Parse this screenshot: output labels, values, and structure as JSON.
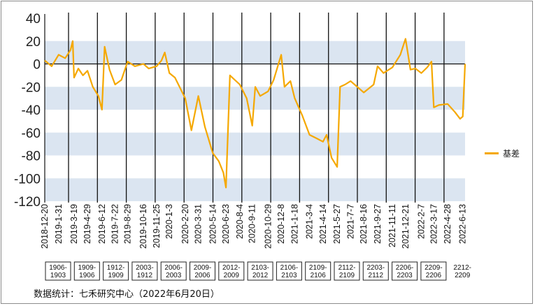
{
  "source_note": "数据统计：七禾研究中心（2022年6月20日）",
  "colors": {
    "series": "#f5a800",
    "band": "#dbe5f1",
    "switch_line": "#111111"
  },
  "chart_data": {
    "type": "line",
    "title": "",
    "xlabel": "",
    "ylabel": "",
    "ylim": [
      -120,
      40
    ],
    "yticks": [
      40,
      20,
      0,
      -20,
      -40,
      -60,
      -80,
      -100,
      -120
    ],
    "grid": "alternating horizontal bands",
    "legend_position": "right",
    "x_tick_labels": [
      "2018-12-20",
      "2019-1-31",
      "2019-3-19",
      "2019-4-29",
      "2019-6-12",
      "2019-7-22",
      "2019-8-29",
      "2019-10-16",
      "2019-11-25",
      "2020-1-3",
      "2020-2-20",
      "2020-3-31",
      "2020-5-14",
      "2020-6-23",
      "2020-8-4",
      "2020-9-11",
      "2020-10-29",
      "2020-12-8",
      "2021-1-18",
      "2021-3-4",
      "2021-4-14",
      "2021-5-27",
      "2021-7-7",
      "2021-8-16",
      "2021-9-27",
      "2021-11-11",
      "2021-12-21",
      "2022-2-7",
      "2022-3-17",
      "2022-4-28",
      "2022-6-13"
    ],
    "contract_switches": [
      "1906-1903",
      "1909-1906",
      "1912-1909",
      "2003-1912",
      "2006-2003",
      "2009-2006",
      "2012-2009",
      "2103-2012",
      "2106-2103",
      "2109-2106",
      "2112-2109",
      "2203-2112",
      "2206-2203",
      "2209-2206",
      "2212-2209"
    ],
    "series": [
      {
        "name": "基差",
        "x": [
          "2018-12-20",
          "2019-1-10",
          "2019-1-31",
          "2019-2-20",
          "2019-3-8",
          "2019-3-15",
          "2019-3-19",
          "2019-4-1",
          "2019-4-15",
          "2019-4-29",
          "2019-5-15",
          "2019-6-1",
          "2019-6-12",
          "2019-6-20",
          "2019-7-5",
          "2019-7-22",
          "2019-8-10",
          "2019-8-29",
          "2019-9-20",
          "2019-10-16",
          "2019-11-1",
          "2019-11-25",
          "2019-12-10",
          "2019-12-20",
          "2020-1-3",
          "2020-1-20",
          "2020-2-20",
          "2020-3-10",
          "2020-3-31",
          "2020-4-20",
          "2020-5-14",
          "2020-6-1",
          "2020-6-15",
          "2020-6-23",
          "2020-7-5",
          "2020-8-4",
          "2020-8-25",
          "2020-9-11",
          "2020-9-20",
          "2020-10-5",
          "2020-10-29",
          "2020-11-15",
          "2020-12-8",
          "2020-12-18",
          "2021-1-5",
          "2021-1-18",
          "2021-2-10",
          "2021-3-4",
          "2021-3-25",
          "2021-4-14",
          "2021-4-25",
          "2021-5-10",
          "2021-5-27",
          "2021-6-5",
          "2021-6-20",
          "2021-7-7",
          "2021-8-16",
          "2021-9-15",
          "2021-9-27",
          "2021-10-15",
          "2021-11-11",
          "2021-12-5",
          "2021-12-21",
          "2022-1-5",
          "2022-1-20",
          "2022-2-7",
          "2022-2-25",
          "2022-3-10",
          "2022-3-17",
          "2022-4-1",
          "2022-4-28",
          "2022-5-20",
          "2022-6-5",
          "2022-6-13",
          "2022-6-20"
        ],
        "values": [
          3,
          -2,
          8,
          5,
          12,
          20,
          -12,
          -4,
          -10,
          -6,
          -20,
          -28,
          -40,
          15,
          -5,
          -18,
          -14,
          2,
          -2,
          0,
          -4,
          -2,
          3,
          10,
          -8,
          -12,
          -30,
          -58,
          -28,
          -55,
          -78,
          -85,
          -95,
          -108,
          -10,
          -18,
          -30,
          -54,
          -20,
          -28,
          -24,
          -14,
          8,
          -20,
          -15,
          -30,
          -45,
          -62,
          -65,
          -68,
          -62,
          -82,
          -90,
          -20,
          -18,
          -15,
          -25,
          -18,
          -2,
          -8,
          -3,
          8,
          22,
          -5,
          -4,
          -8,
          -3,
          2,
          -38,
          -36,
          -35,
          -42,
          -48,
          -46,
          0
        ]
      }
    ]
  }
}
